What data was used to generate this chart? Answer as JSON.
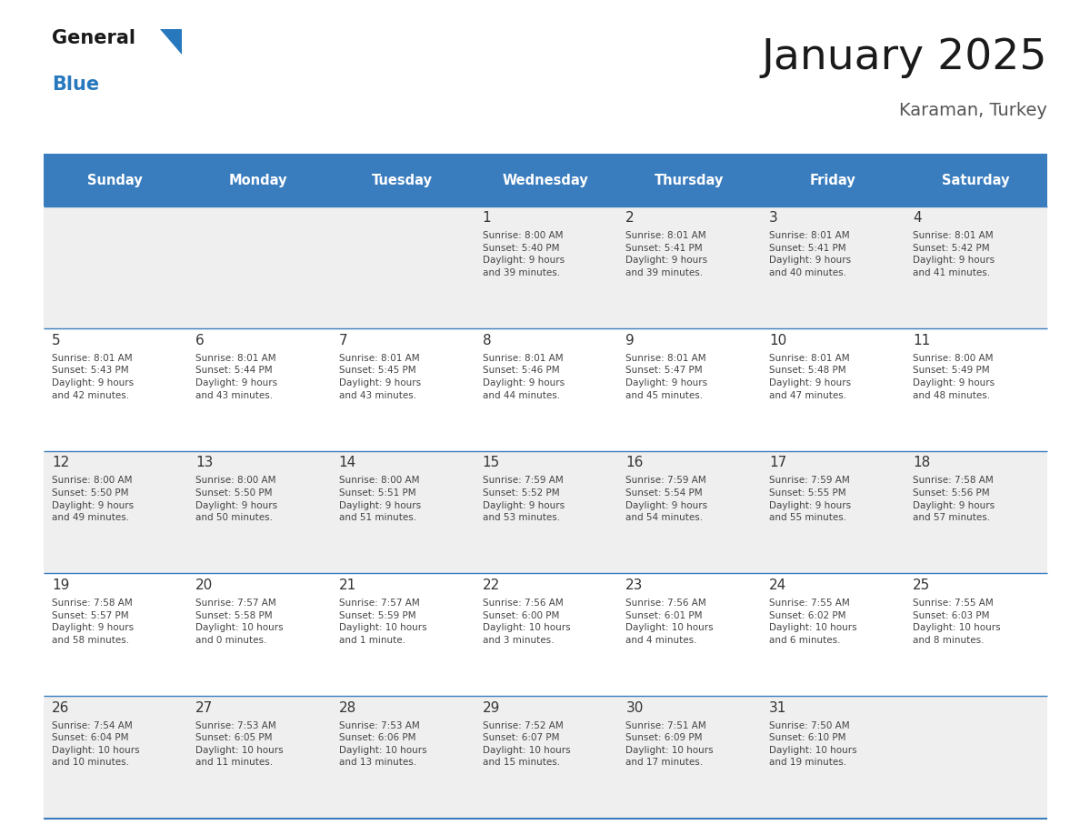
{
  "title": "January 2025",
  "subtitle": "Karaman, Turkey",
  "days_of_week": [
    "Sunday",
    "Monday",
    "Tuesday",
    "Wednesday",
    "Thursday",
    "Friday",
    "Saturday"
  ],
  "header_bg": "#3a7dbf",
  "header_text": "#ffffff",
  "cell_bg_odd": "#efefef",
  "cell_bg_even": "#ffffff",
  "cell_border": "#3a7dbf",
  "day_num_color": "#333333",
  "info_color": "#444444",
  "title_color": "#1a1a1a",
  "subtitle_color": "#555555",
  "logo_general_color": "#1a1a1a",
  "logo_blue_color": "#2878be",
  "weeks": [
    [
      {
        "day": null,
        "info": null
      },
      {
        "day": null,
        "info": null
      },
      {
        "day": null,
        "info": null
      },
      {
        "day": 1,
        "info": "Sunrise: 8:00 AM\nSunset: 5:40 PM\nDaylight: 9 hours\nand 39 minutes."
      },
      {
        "day": 2,
        "info": "Sunrise: 8:01 AM\nSunset: 5:41 PM\nDaylight: 9 hours\nand 39 minutes."
      },
      {
        "day": 3,
        "info": "Sunrise: 8:01 AM\nSunset: 5:41 PM\nDaylight: 9 hours\nand 40 minutes."
      },
      {
        "day": 4,
        "info": "Sunrise: 8:01 AM\nSunset: 5:42 PM\nDaylight: 9 hours\nand 41 minutes."
      }
    ],
    [
      {
        "day": 5,
        "info": "Sunrise: 8:01 AM\nSunset: 5:43 PM\nDaylight: 9 hours\nand 42 minutes."
      },
      {
        "day": 6,
        "info": "Sunrise: 8:01 AM\nSunset: 5:44 PM\nDaylight: 9 hours\nand 43 minutes."
      },
      {
        "day": 7,
        "info": "Sunrise: 8:01 AM\nSunset: 5:45 PM\nDaylight: 9 hours\nand 43 minutes."
      },
      {
        "day": 8,
        "info": "Sunrise: 8:01 AM\nSunset: 5:46 PM\nDaylight: 9 hours\nand 44 minutes."
      },
      {
        "day": 9,
        "info": "Sunrise: 8:01 AM\nSunset: 5:47 PM\nDaylight: 9 hours\nand 45 minutes."
      },
      {
        "day": 10,
        "info": "Sunrise: 8:01 AM\nSunset: 5:48 PM\nDaylight: 9 hours\nand 47 minutes."
      },
      {
        "day": 11,
        "info": "Sunrise: 8:00 AM\nSunset: 5:49 PM\nDaylight: 9 hours\nand 48 minutes."
      }
    ],
    [
      {
        "day": 12,
        "info": "Sunrise: 8:00 AM\nSunset: 5:50 PM\nDaylight: 9 hours\nand 49 minutes."
      },
      {
        "day": 13,
        "info": "Sunrise: 8:00 AM\nSunset: 5:50 PM\nDaylight: 9 hours\nand 50 minutes."
      },
      {
        "day": 14,
        "info": "Sunrise: 8:00 AM\nSunset: 5:51 PM\nDaylight: 9 hours\nand 51 minutes."
      },
      {
        "day": 15,
        "info": "Sunrise: 7:59 AM\nSunset: 5:52 PM\nDaylight: 9 hours\nand 53 minutes."
      },
      {
        "day": 16,
        "info": "Sunrise: 7:59 AM\nSunset: 5:54 PM\nDaylight: 9 hours\nand 54 minutes."
      },
      {
        "day": 17,
        "info": "Sunrise: 7:59 AM\nSunset: 5:55 PM\nDaylight: 9 hours\nand 55 minutes."
      },
      {
        "day": 18,
        "info": "Sunrise: 7:58 AM\nSunset: 5:56 PM\nDaylight: 9 hours\nand 57 minutes."
      }
    ],
    [
      {
        "day": 19,
        "info": "Sunrise: 7:58 AM\nSunset: 5:57 PM\nDaylight: 9 hours\nand 58 minutes."
      },
      {
        "day": 20,
        "info": "Sunrise: 7:57 AM\nSunset: 5:58 PM\nDaylight: 10 hours\nand 0 minutes."
      },
      {
        "day": 21,
        "info": "Sunrise: 7:57 AM\nSunset: 5:59 PM\nDaylight: 10 hours\nand 1 minute."
      },
      {
        "day": 22,
        "info": "Sunrise: 7:56 AM\nSunset: 6:00 PM\nDaylight: 10 hours\nand 3 minutes."
      },
      {
        "day": 23,
        "info": "Sunrise: 7:56 AM\nSunset: 6:01 PM\nDaylight: 10 hours\nand 4 minutes."
      },
      {
        "day": 24,
        "info": "Sunrise: 7:55 AM\nSunset: 6:02 PM\nDaylight: 10 hours\nand 6 minutes."
      },
      {
        "day": 25,
        "info": "Sunrise: 7:55 AM\nSunset: 6:03 PM\nDaylight: 10 hours\nand 8 minutes."
      }
    ],
    [
      {
        "day": 26,
        "info": "Sunrise: 7:54 AM\nSunset: 6:04 PM\nDaylight: 10 hours\nand 10 minutes."
      },
      {
        "day": 27,
        "info": "Sunrise: 7:53 AM\nSunset: 6:05 PM\nDaylight: 10 hours\nand 11 minutes."
      },
      {
        "day": 28,
        "info": "Sunrise: 7:53 AM\nSunset: 6:06 PM\nDaylight: 10 hours\nand 13 minutes."
      },
      {
        "day": 29,
        "info": "Sunrise: 7:52 AM\nSunset: 6:07 PM\nDaylight: 10 hours\nand 15 minutes."
      },
      {
        "day": 30,
        "info": "Sunrise: 7:51 AM\nSunset: 6:09 PM\nDaylight: 10 hours\nand 17 minutes."
      },
      {
        "day": 31,
        "info": "Sunrise: 7:50 AM\nSunset: 6:10 PM\nDaylight: 10 hours\nand 19 minutes."
      },
      {
        "day": null,
        "info": null
      }
    ]
  ]
}
